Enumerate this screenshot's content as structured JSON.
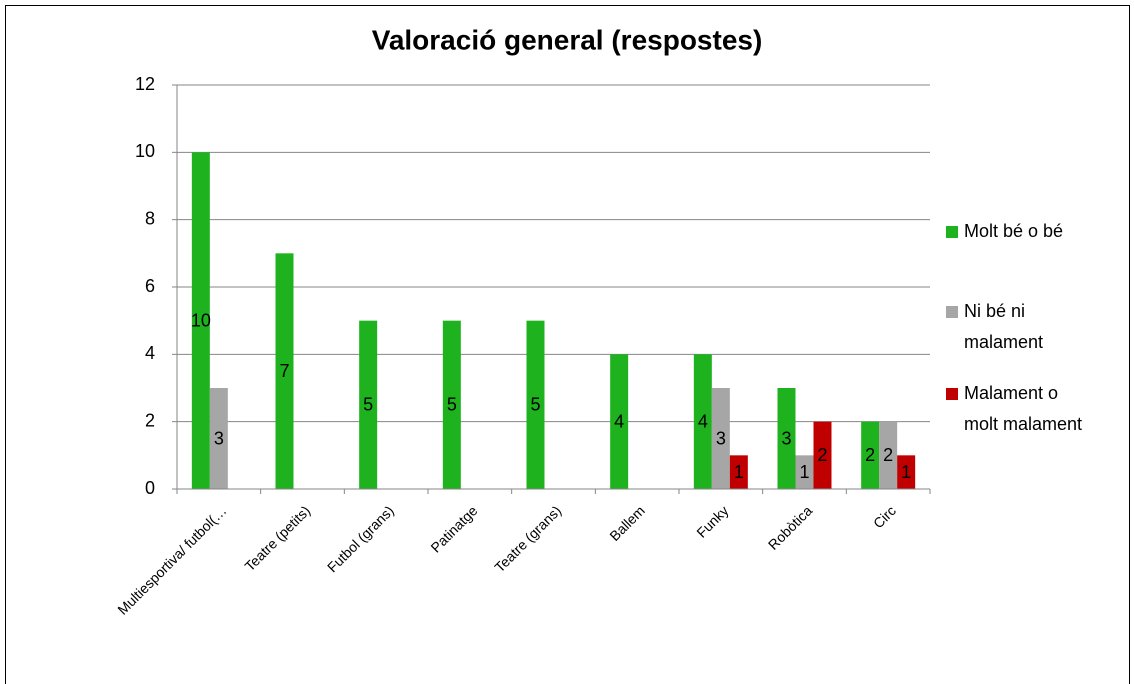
{
  "chart_data": {
    "type": "bar",
    "title": "Valoració general (respostes)",
    "categories": [
      "Multiesportiva/ futbol(…",
      "Teatre (petits)",
      "Futbol (grans)",
      "Patinatge",
      "Teatre (grans)",
      "Ballem",
      "Funky",
      "Robòtica",
      "Circ"
    ],
    "series": [
      {
        "name": "Molt bé o bé",
        "color": "#1eb31e",
        "values": [
          10,
          7,
          5,
          5,
          5,
          4,
          4,
          3,
          2
        ]
      },
      {
        "name": "Ni bé ni malament",
        "color": "#a6a6a6",
        "values": [
          3,
          null,
          null,
          null,
          null,
          null,
          3,
          1,
          2
        ]
      },
      {
        "name": "Malament o molt malament",
        "color": "#c00000",
        "values": [
          null,
          null,
          null,
          null,
          null,
          null,
          1,
          2,
          1
        ]
      }
    ],
    "ylim": [
      0,
      12
    ],
    "yticks": [
      0,
      2,
      4,
      6,
      8,
      10,
      12
    ],
    "grid": true,
    "legend": "right"
  }
}
